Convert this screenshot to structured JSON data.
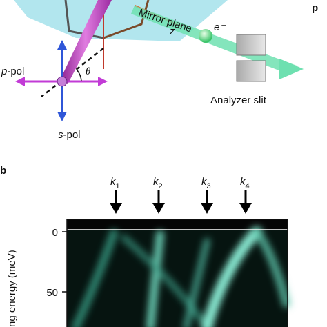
{
  "panel_a": {
    "plane_label": "Mirror plane",
    "z_label": "z",
    "electron_label": "e⁻",
    "theta_label": "θ",
    "p_pol": {
      "symbol": "p",
      "suffix": "-pol"
    },
    "s_pol": {
      "symbol": "s",
      "suffix": "-pol"
    },
    "slit_label": "Analyzer slit",
    "corner_fragment": "p"
  },
  "panel_b": {
    "label": "b",
    "k_labels": [
      {
        "symbol": "k",
        "subscript": "1"
      },
      {
        "symbol": "k",
        "subscript": "2"
      },
      {
        "symbol": "k",
        "subscript": "3"
      },
      {
        "symbol": "k",
        "subscript": "4"
      }
    ],
    "yticks": [
      "0",
      "50"
    ],
    "y_label": "ng energy (meV)"
  }
}
